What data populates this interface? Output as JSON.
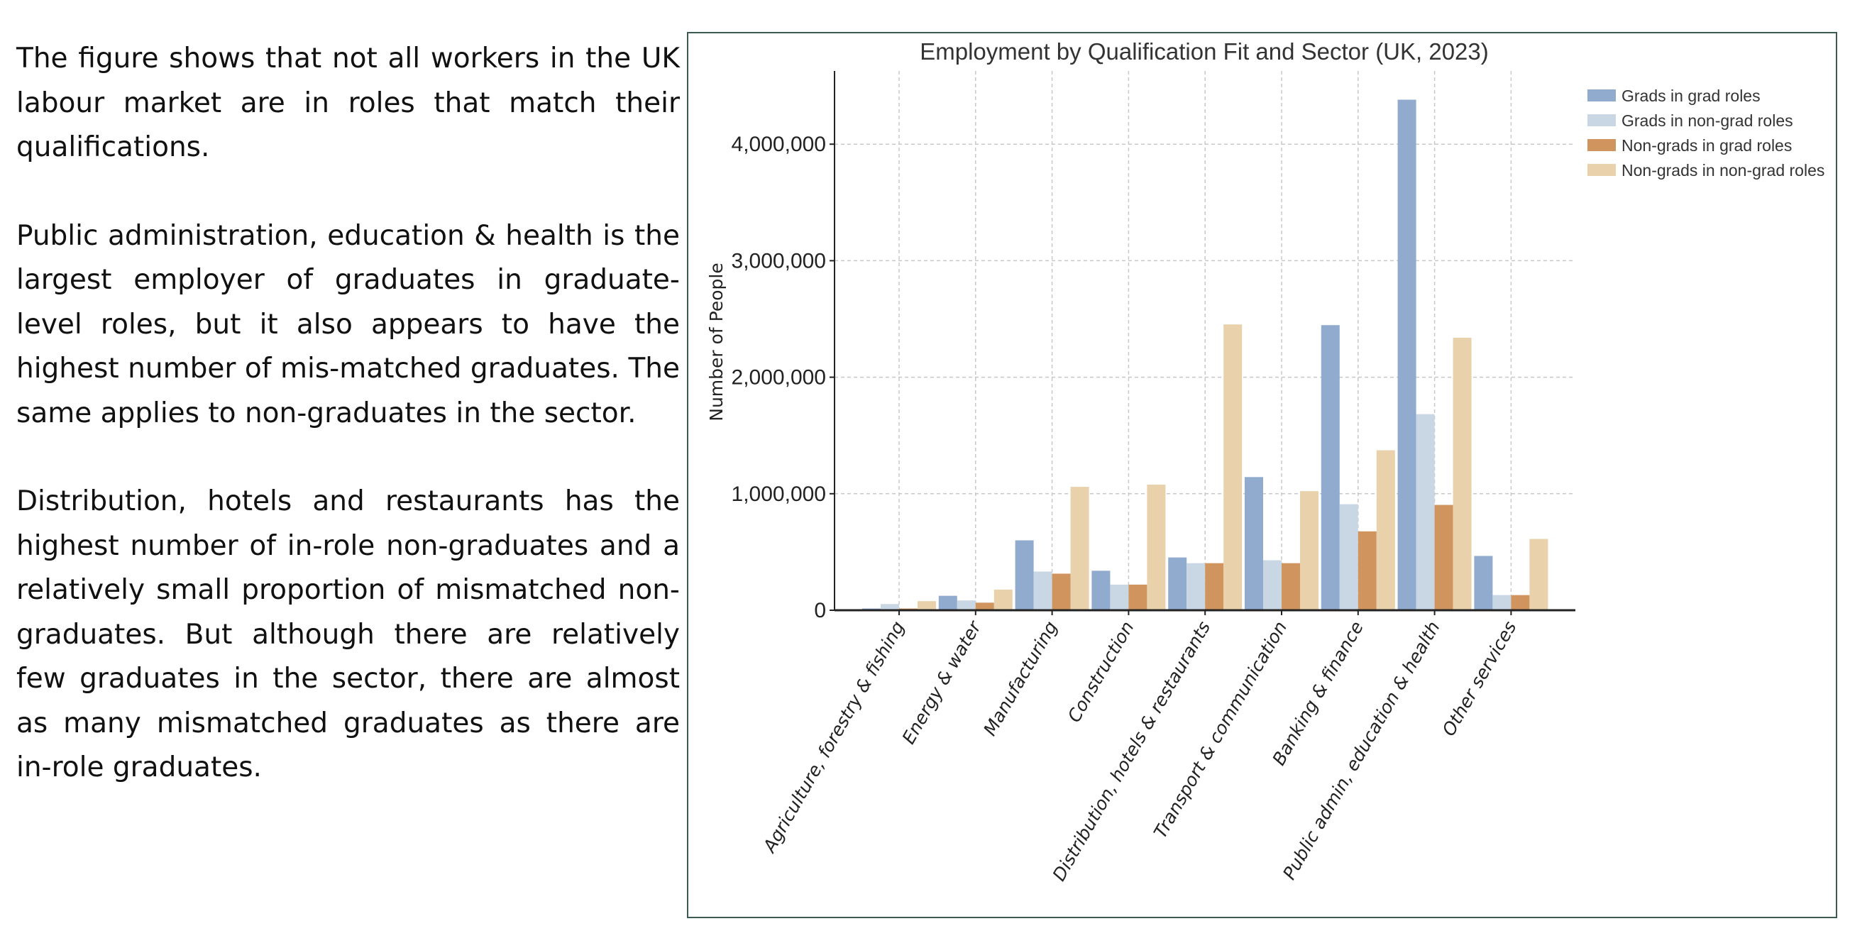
{
  "text": {
    "paragraphs": [
      "The figure shows that not all workers in the UK labour market are in roles that match their qualifications.",
      "Public administration, education & health is the largest employer of graduates in graduate-level roles, but it also appears to have the highest number of mis-matched graduates. The same applies to non-graduates in the sector.",
      "Distribution, hotels and restaurants has the highest number of in-role non-graduates and a relatively small proportion of mismatched non-graduates. But although there are relatively few graduates in the sector, there are almost as many mismatched graduates as there are in-role graduates."
    ]
  },
  "chart_data": {
    "type": "bar",
    "title": "Employment by Qualification Fit and Sector (UK, 2023)",
    "xlabel": "",
    "ylabel": "Number of People",
    "ylim": [
      0,
      4600000
    ],
    "yticks": [
      0,
      1000000,
      2000000,
      3000000,
      4000000
    ],
    "ytick_labels": [
      "0",
      "1,000,000",
      "2,000,000",
      "3,000,000",
      "4,000,000"
    ],
    "grid": true,
    "legend_position": "top-right",
    "categories": [
      "Agriculture, forestry & fishing",
      "Energy & water",
      "Manufacturing",
      "Construction",
      "Distribution, hotels & restaurants",
      "Transport & communication",
      "Banking & finance",
      "Public admin, education & health",
      "Other services"
    ],
    "series": [
      {
        "name": "Grads in grad roles",
        "color": "#91abcf",
        "values": [
          15000,
          124000,
          600000,
          339000,
          453000,
          1143000,
          2447000,
          4382000,
          466000
        ]
      },
      {
        "name": "Grads in non-grad roles",
        "color": "#c9d6e4",
        "values": [
          53000,
          84000,
          332000,
          220000,
          404000,
          429000,
          910000,
          1683000,
          130000
        ]
      },
      {
        "name": "Non-grads in grad roles",
        "color": "#d0945e",
        "values": [
          15000,
          65000,
          314000,
          220000,
          404000,
          404000,
          677000,
          904000,
          130000
        ]
      },
      {
        "name": "Non-grads in non-grad roles",
        "color": "#e8d1ab",
        "values": [
          78000,
          177000,
          1059000,
          1078000,
          2453000,
          1022000,
          1373000,
          2339000,
          612000
        ]
      }
    ]
  }
}
